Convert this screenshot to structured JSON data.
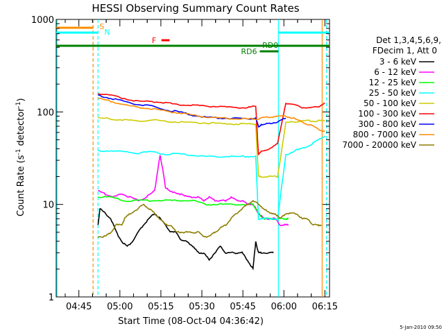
{
  "chart_data": {
    "type": "line",
    "title": "HESSI Observing Summary Count Rates",
    "xlabel": "Start Time (08-Oct-04 04:36:42)",
    "ylabel_main": "Count Rate (s",
    "ylabel_sup1": "-1",
    "ylabel_mid": " detector",
    "ylabel_sup2": "-1",
    "ylabel_end": ")",
    "yscale": "log",
    "ylim": [
      1,
      1000
    ],
    "xlim_min": [
      0,
      100
    ],
    "y_ticks": [
      {
        "label": "1",
        "value": 1
      },
      {
        "label": "10",
        "value": 10
      },
      {
        "label": "100",
        "value": 100
      },
      {
        "label": "1000",
        "value": 1000
      }
    ],
    "x_ticks": [
      {
        "label": "04:45",
        "value": 8.3
      },
      {
        "label": "05:00",
        "value": 23.3
      },
      {
        "label": "05:15",
        "value": 38.3
      },
      {
        "label": "05:30",
        "value": 53.3
      },
      {
        "label": "05:45",
        "value": 68.3
      },
      {
        "label": "06:00",
        "value": 83.3
      },
      {
        "label": "06:15",
        "value": 98.3
      }
    ],
    "legend_header_1": "Det 1,3,4,5,6,9,",
    "legend_header_2": "FDecim 1, Att 0",
    "series": [
      {
        "name": "3 - 6 keV",
        "color": "#000000",
        "t": [
          15.3,
          16,
          18,
          20,
          22,
          24,
          26,
          28,
          30,
          32,
          34,
          36,
          38,
          40,
          42,
          44,
          46,
          48,
          50,
          52,
          54,
          56,
          58,
          60,
          62,
          64,
          66,
          68,
          70,
          72,
          73,
          74,
          75,
          78,
          79.5
        ],
        "values": [
          6,
          9,
          8,
          7,
          5,
          4,
          3.5,
          4,
          5,
          6,
          7,
          8,
          7,
          6,
          5,
          5,
          4,
          4,
          3.5,
          3,
          3,
          2.5,
          3,
          3.5,
          3,
          3,
          3,
          3,
          2.5,
          2,
          4,
          3,
          3,
          3,
          3
        ]
      },
      {
        "name": "6 - 12 keV",
        "color": "#ff00ff",
        "t": [
          15.3,
          18,
          21,
          24,
          27,
          30,
          33,
          36,
          37,
          38,
          39,
          40,
          42,
          44,
          46,
          48,
          50,
          52,
          54,
          56,
          58,
          60,
          62,
          64,
          66,
          68,
          70,
          72,
          73,
          74,
          76,
          78,
          80,
          82,
          84,
          85
        ],
        "values": [
          14,
          13,
          12,
          13,
          12,
          11,
          12,
          14,
          22,
          34,
          24,
          15,
          14,
          13,
          13,
          12,
          12,
          12,
          11,
          12,
          11,
          11,
          11,
          12,
          11,
          11,
          10,
          10,
          9,
          8,
          7,
          7,
          7,
          6,
          6,
          6
        ]
      },
      {
        "name": "12 - 25 keV",
        "color": "#00ff00",
        "t": [
          15.3,
          20,
          25,
          30,
          35,
          40,
          45,
          50,
          55,
          60,
          65,
          70,
          72,
          73,
          74,
          76,
          78,
          80,
          82,
          84,
          85
        ],
        "values": [
          12,
          12,
          11,
          11,
          11,
          11,
          11,
          11,
          10,
          10,
          10,
          10,
          10,
          9,
          8,
          7,
          7,
          7,
          7,
          7,
          7
        ]
      },
      {
        "name": "25 - 50 keV",
        "color": "#00ffff",
        "t": [
          15.3,
          20,
          25,
          30,
          35,
          40,
          45,
          50,
          55,
          60,
          65,
          70,
          73,
          74,
          75,
          78,
          81,
          84,
          87,
          90,
          93,
          96,
          98.3
        ],
        "values": [
          38,
          38,
          37,
          36,
          37,
          35,
          35,
          34,
          33,
          33,
          33,
          33,
          33,
          7,
          7,
          7,
          7,
          34,
          38,
          40,
          44,
          50,
          55
        ]
      },
      {
        "name": "50 - 100 keV",
        "color": "#cccc00",
        "t": [
          15.3,
          20,
          25,
          30,
          35,
          40,
          45,
          50,
          55,
          60,
          65,
          70,
          73,
          74,
          75,
          78,
          81,
          84,
          87,
          90,
          93,
          96,
          98.3
        ],
        "values": [
          86,
          84,
          82,
          80,
          82,
          79,
          78,
          77,
          76,
          75,
          74,
          74,
          74,
          20,
          20,
          20,
          20,
          76,
          78,
          80,
          80,
          80,
          80
        ]
      },
      {
        "name": "100 - 300 keV",
        "color": "#ff0000",
        "t": [
          15.3,
          20,
          25,
          30,
          35,
          40,
          45,
          50,
          55,
          60,
          65,
          70,
          73,
          74,
          75,
          78,
          81,
          84,
          87,
          90,
          93,
          96,
          98.3
        ],
        "values": [
          160,
          150,
          140,
          130,
          130,
          125,
          120,
          118,
          116,
          114,
          112,
          112,
          115,
          35,
          37,
          40,
          45,
          125,
          120,
          112,
          110,
          115,
          125
        ]
      },
      {
        "name": "300 - 800 keV",
        "color": "#0000ff",
        "t": [
          15.3,
          20,
          25,
          30,
          35,
          40,
          45,
          50,
          55,
          60,
          65,
          70,
          73,
          74,
          75,
          78,
          81,
          84
        ],
        "values": [
          150,
          140,
          130,
          120,
          115,
          105,
          100,
          92,
          88,
          86,
          85,
          85,
          85,
          70,
          72,
          75,
          78,
          85
        ]
      },
      {
        "name": "800 - 7000 keV",
        "color": "#ff8c00",
        "t": [
          15.3,
          20,
          25,
          30,
          35,
          40,
          45,
          50,
          55,
          60,
          65,
          70,
          73,
          75,
          78,
          81,
          84,
          87,
          90,
          93,
          96,
          98.3
        ],
        "values": [
          140,
          130,
          120,
          112,
          108,
          102,
          98,
          92,
          88,
          86,
          84,
          84,
          84,
          85,
          88,
          90,
          90,
          85,
          78,
          72,
          65,
          62
        ]
      },
      {
        "name": "7000 - 20000 keV",
        "color": "#8b7d00",
        "t": [
          15.3,
          18,
          20,
          22,
          24,
          25,
          27,
          30,
          32,
          34,
          36,
          38,
          40,
          42,
          44,
          46,
          48,
          50,
          52,
          54,
          56,
          58,
          60,
          62,
          64,
          66,
          68,
          70,
          72,
          74,
          76,
          78,
          80,
          82,
          84,
          86,
          88,
          90,
          92,
          94,
          96,
          97
        ],
        "values": [
          4.5,
          4.5,
          5,
          6,
          6,
          7,
          8,
          9,
          10,
          9,
          8,
          7,
          6,
          6,
          5,
          5,
          5,
          5,
          5,
          4.5,
          4.5,
          5,
          5.5,
          6,
          7,
          8,
          9,
          10,
          11,
          10,
          9,
          8,
          8,
          7,
          8,
          8,
          8,
          7,
          7,
          6,
          6,
          6
        ]
      }
    ],
    "annotations": [
      {
        "label": "S",
        "color": "#ff8c00"
      },
      {
        "label": "N",
        "color": "#00ffff"
      },
      {
        "label": "F",
        "color": "#ff0000"
      },
      {
        "label": "RD0",
        "color": "#008000"
      },
      {
        "label": "RD6",
        "color": "#008000"
      }
    ],
    "timestamp": "5-Jan-2010 09:50"
  }
}
